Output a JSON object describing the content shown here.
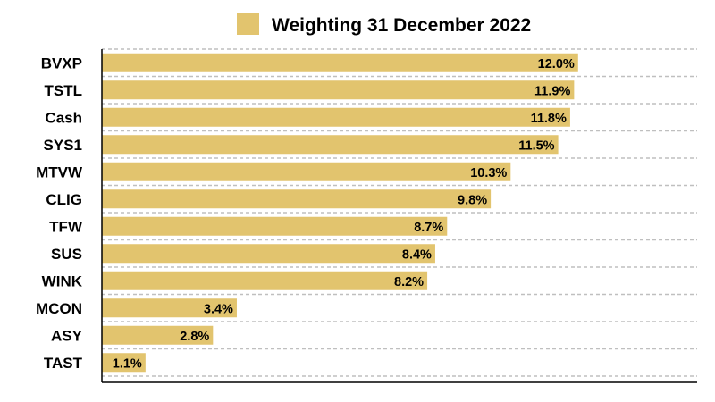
{
  "chart_data": {
    "type": "bar",
    "orientation": "horizontal",
    "legend": {
      "position": "top",
      "entries": [
        "Weighting 31 December 2022"
      ]
    },
    "categories": [
      "BVXP",
      "TSTL",
      "Cash",
      "SYS1",
      "MTVW",
      "CLIG",
      "TFW",
      "SUS",
      "WINK",
      "MCON",
      "ASY",
      "TAST"
    ],
    "series": [
      {
        "name": "Weighting 31 December 2022",
        "values": [
          12.0,
          11.9,
          11.8,
          11.5,
          10.3,
          9.8,
          8.7,
          8.4,
          8.2,
          3.4,
          2.8,
          1.1
        ],
        "labels": [
          "12.0%",
          "11.9%",
          "11.8%",
          "11.5%",
          "10.3%",
          "9.8%",
          "8.7%",
          "8.4%",
          "8.2%",
          "3.4%",
          "2.8%",
          "1.1%"
        ]
      }
    ],
    "xlim": [
      0,
      15
    ],
    "grid": "horizontal dashed",
    "colors": {
      "bar": "#E2C46E",
      "grid": "#BFBFBF",
      "axis": "#000000",
      "text": "#000000"
    }
  }
}
